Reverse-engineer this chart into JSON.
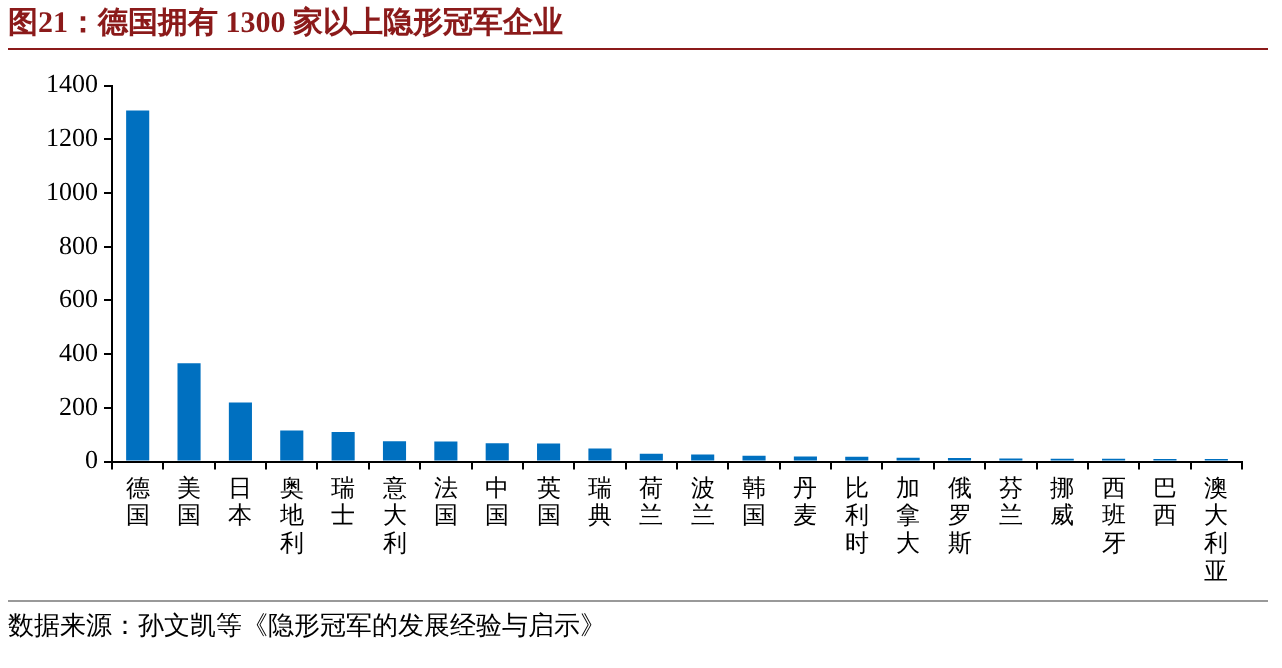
{
  "chart_data": {
    "type": "bar",
    "title": "图21：德国拥有 1300 家以上隐形冠军企业",
    "categories": [
      "德国",
      "美国",
      "日本",
      "奥地利",
      "瑞士",
      "意大利",
      "法国",
      "中国",
      "英国",
      "瑞典",
      "荷兰",
      "波兰",
      "韩国",
      "丹麦",
      "比利时",
      "加拿大",
      "俄罗斯",
      "芬兰",
      "挪威",
      "西班牙",
      "巴西",
      "澳大利亚"
    ],
    "values": [
      1307,
      366,
      220,
      116,
      110,
      76,
      75,
      68,
      67,
      49,
      29,
      26,
      22,
      19,
      18,
      14,
      13,
      12,
      11,
      11,
      10,
      10
    ],
    "color": "#0070c0",
    "ylim": [
      0,
      1400
    ],
    "yticks": [
      0,
      200,
      400,
      600,
      800,
      1000,
      1200,
      1400
    ],
    "grid": false,
    "annotations": [
      "数据来源：孙文凯等《隐形冠军的发展经验与启示》"
    ]
  }
}
